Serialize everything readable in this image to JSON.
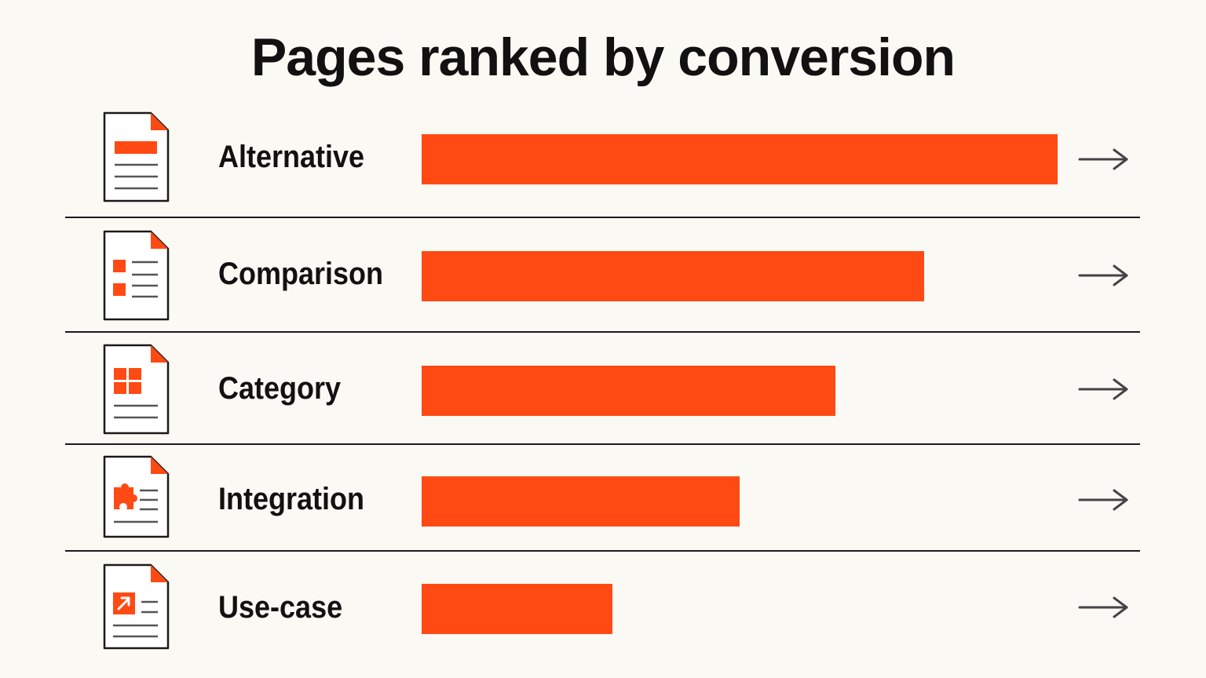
{
  "title": "Pages ranked by conversion",
  "colors": {
    "bar": "#ff4a14",
    "icon_accent": "#ff4a14",
    "text": "#111111",
    "background": "#fbf9f4"
  },
  "chart_data": {
    "type": "bar",
    "orientation": "horizontal",
    "title": "Pages ranked by conversion",
    "categories": [
      "Alternative",
      "Comparison",
      "Category",
      "Integration",
      "Use-case"
    ],
    "values": [
      100,
      79,
      65,
      50,
      30
    ],
    "value_scale": "relative (no axis printed)",
    "xlabel": "",
    "ylabel": "",
    "grid": false,
    "legend": "none"
  },
  "rows": [
    {
      "label": "Alternative",
      "icon": "document-banner-icon",
      "action_icon": "arrow-right-icon"
    },
    {
      "label": "Comparison",
      "icon": "document-list-icon",
      "action_icon": "arrow-right-icon"
    },
    {
      "label": "Category",
      "icon": "document-grid-icon",
      "action_icon": "arrow-right-icon"
    },
    {
      "label": "Integration",
      "icon": "document-puzzle-icon",
      "action_icon": "arrow-right-icon"
    },
    {
      "label": "Use-case",
      "icon": "document-launch-icon",
      "action_icon": "arrow-right-icon"
    }
  ]
}
